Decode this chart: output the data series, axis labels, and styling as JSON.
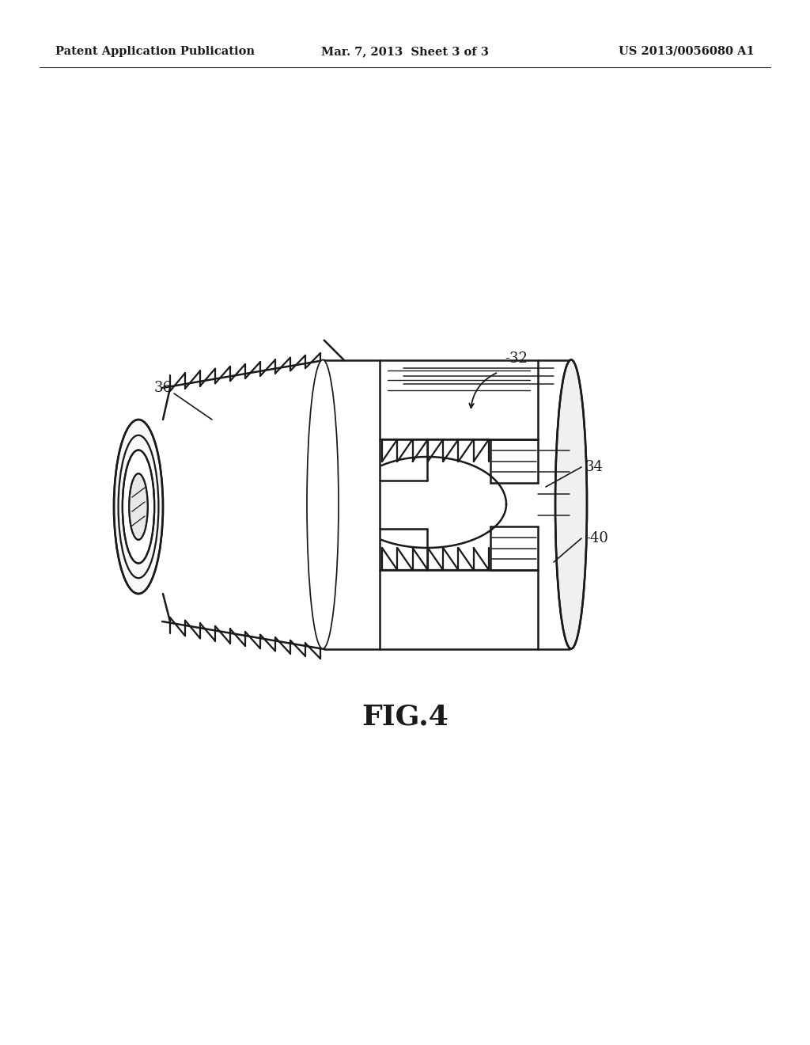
{
  "background_color": "#ffffff",
  "header_left": "Patent Application Publication",
  "header_center": "Mar. 7, 2013  Sheet 3 of 3",
  "header_right": "US 2013/0056080 A1",
  "header_fontsize": 10.5,
  "figure_label": "FIG.4",
  "figure_label_fontsize": 26,
  "label_32": "-32",
  "label_34": "34",
  "label_36": "36",
  "label_40": "-40",
  "label_fontsize": 13,
  "line_color": "#1a1a1a",
  "line_width": 1.8
}
